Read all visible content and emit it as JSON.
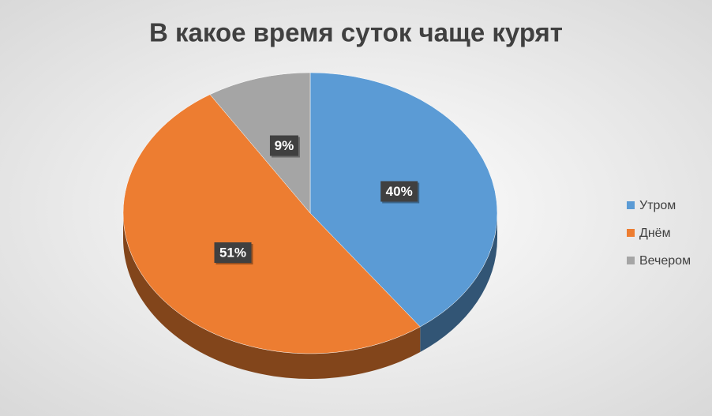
{
  "chart_data": {
    "type": "pie",
    "title": "В какое время суток чаще курят",
    "categories": [
      "Утром",
      "Днём",
      "Вечером"
    ],
    "values": [
      40,
      51,
      9
    ],
    "value_labels": [
      "40%",
      "51%",
      "9%"
    ],
    "colors": [
      "#5b9bd5",
      "#ed7d31",
      "#a5a5a5"
    ],
    "legend": "right"
  }
}
